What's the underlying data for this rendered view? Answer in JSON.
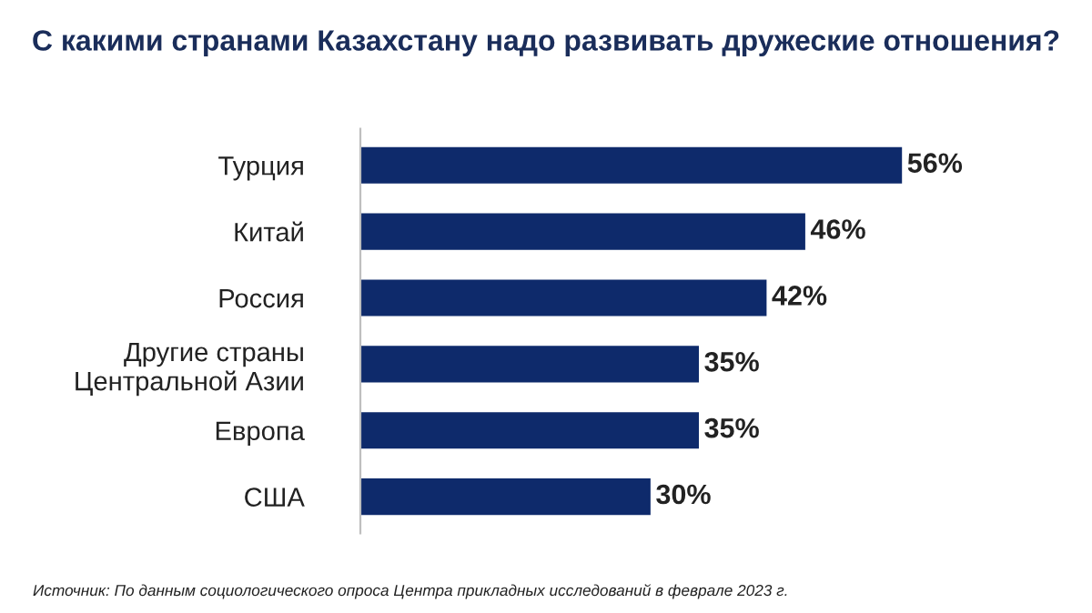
{
  "chart_data": {
    "type": "bar",
    "orientation": "horizontal",
    "title": "С какими странами Казахстану надо развивать дружеские отношения?",
    "categories": [
      "Турция",
      "Китай",
      "Россия",
      "Другие страны\nЦентральной Азии",
      "Европа",
      "США"
    ],
    "values": [
      56,
      46,
      42,
      35,
      35,
      30
    ],
    "value_labels": [
      "56%",
      "46%",
      "42%",
      "35%",
      "35%",
      "30%"
    ],
    "color": "#0e2a6b",
    "grid": false,
    "legend": false,
    "annotations": [
      "Источник: По данным социологического опроса Центра прикладных исследований в феврале 2023 г."
    ]
  }
}
